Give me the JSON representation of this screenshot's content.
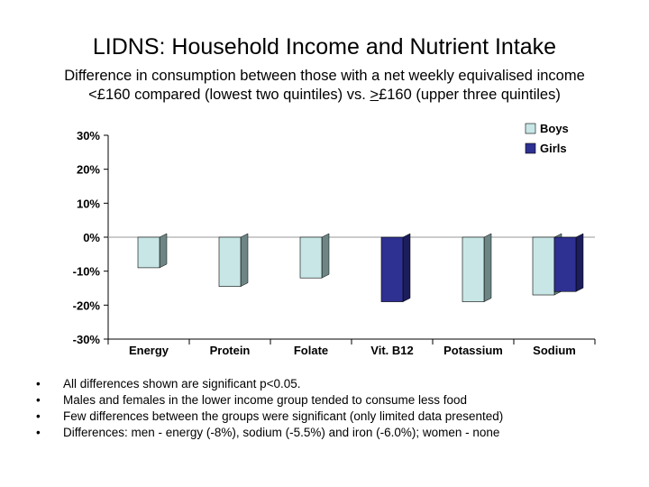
{
  "slide": {
    "title": "LIDNS: Household Income and Nutrient Intake",
    "subtitle_line1": "Difference in consumption between those with a net weekly equivalised income",
    "subtitle_line2_pre": "<£160 compared (lowest two quintiles) vs. ",
    "subtitle_line2_u": ">",
    "subtitle_line2_post": "£160 (upper three quintiles)"
  },
  "bullets": [
    "All differences shown are significant p<0.05.",
    "Males and females in the lower income group tended to consume less food",
    "Few differences between the groups were significant (only limited data presented)",
    "Differences: men - energy (-8%), sodium (-5.5%) and iron (-6.0%); women - none"
  ],
  "bullet_char": "•",
  "chart_data": {
    "type": "bar",
    "categories": [
      "Energy",
      "Protein",
      "Folate",
      "Vit. B12",
      "Potassium",
      "Sodium"
    ],
    "series": [
      {
        "name": "Boys",
        "values": [
          -9,
          -14.5,
          -12,
          null,
          -19,
          -17
        ],
        "color": "#c8e6e6"
      },
      {
        "name": "Girls",
        "values": [
          null,
          null,
          null,
          -19,
          null,
          -16
        ],
        "color": "#2e3092"
      }
    ],
    "ylim": [
      -30,
      30
    ],
    "yticks": [
      -30,
      -20,
      -10,
      0,
      10,
      20,
      30
    ],
    "ytick_labels": [
      "-30%",
      "-20%",
      "-10%",
      "0%",
      "10%",
      "20%",
      "30%"
    ],
    "legend": "top-right",
    "grid": false,
    "bar_style": "3d"
  }
}
